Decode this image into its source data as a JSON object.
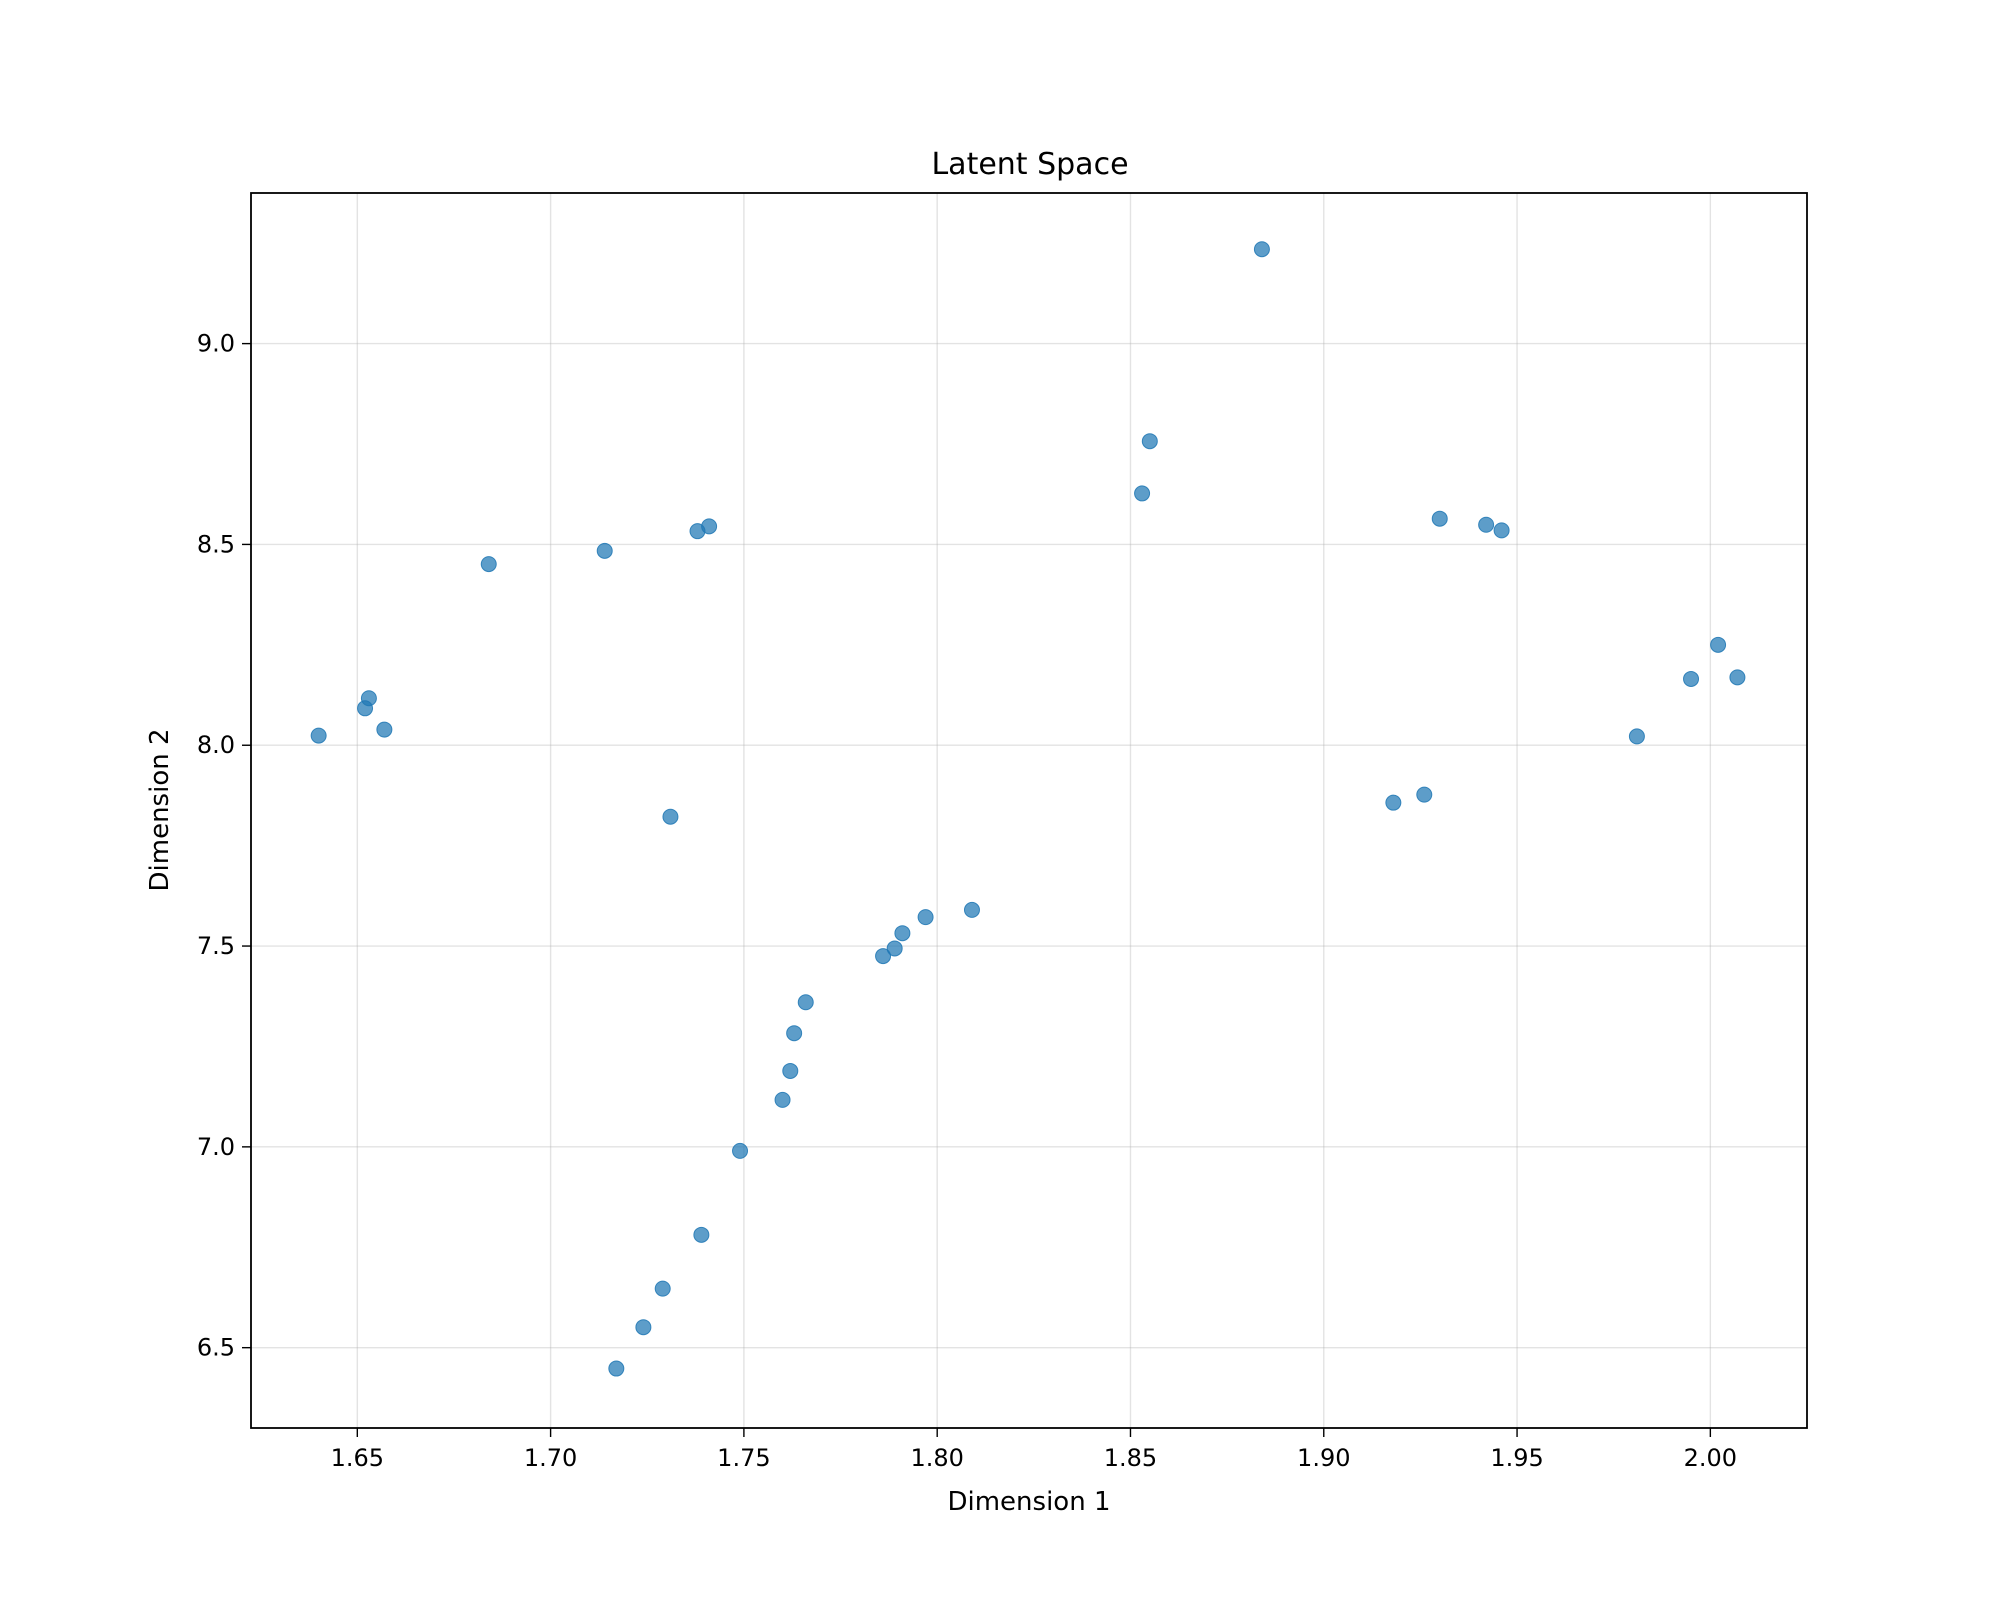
{
  "chart_data": {
    "type": "scatter",
    "title": "Latent Space",
    "xlabel": "Dimension 1",
    "ylabel": "Dimension 2",
    "xlim": [
      1.6225,
      2.025
    ],
    "ylim": [
      6.3,
      9.375
    ],
    "xticks": [
      1.65,
      1.7,
      1.75,
      1.8,
      1.85,
      1.9,
      1.95,
      2.0
    ],
    "xtick_labels": [
      "1.65",
      "1.70",
      "1.75",
      "1.80",
      "1.85",
      "1.90",
      "1.95",
      "2.00"
    ],
    "yticks": [
      6.5,
      7.0,
      7.5,
      8.0,
      8.5,
      9.0
    ],
    "ytick_labels": [
      "6.5",
      "7.0",
      "7.5",
      "8.0",
      "8.5",
      "9.0"
    ],
    "grid": true,
    "marker_color": "#1f77b4",
    "series": [
      {
        "points": [
          {
            "x": 1.884,
            "y": 9.235
          },
          {
            "x": 1.855,
            "y": 8.757
          },
          {
            "x": 1.853,
            "y": 8.627
          },
          {
            "x": 1.93,
            "y": 8.564
          },
          {
            "x": 1.942,
            "y": 8.549
          },
          {
            "x": 1.946,
            "y": 8.535
          },
          {
            "x": 1.741,
            "y": 8.545
          },
          {
            "x": 1.738,
            "y": 8.533
          },
          {
            "x": 1.714,
            "y": 8.484
          },
          {
            "x": 1.684,
            "y": 8.451
          },
          {
            "x": 2.002,
            "y": 8.25
          },
          {
            "x": 1.995,
            "y": 8.165
          },
          {
            "x": 2.007,
            "y": 8.169
          },
          {
            "x": 1.981,
            "y": 8.022
          },
          {
            "x": 1.653,
            "y": 8.117
          },
          {
            "x": 1.652,
            "y": 8.092
          },
          {
            "x": 1.657,
            "y": 8.039
          },
          {
            "x": 1.64,
            "y": 8.024
          },
          {
            "x": 1.918,
            "y": 7.857
          },
          {
            "x": 1.926,
            "y": 7.877
          },
          {
            "x": 1.731,
            "y": 7.822
          },
          {
            "x": 1.809,
            "y": 7.59
          },
          {
            "x": 1.797,
            "y": 7.572
          },
          {
            "x": 1.791,
            "y": 7.532
          },
          {
            "x": 1.789,
            "y": 7.494
          },
          {
            "x": 1.786,
            "y": 7.475
          },
          {
            "x": 1.766,
            "y": 7.36
          },
          {
            "x": 1.763,
            "y": 7.283
          },
          {
            "x": 1.762,
            "y": 7.189
          },
          {
            "x": 1.76,
            "y": 7.117
          },
          {
            "x": 1.749,
            "y": 6.99
          },
          {
            "x": 1.739,
            "y": 6.781
          },
          {
            "x": 1.729,
            "y": 6.647
          },
          {
            "x": 1.724,
            "y": 6.551
          },
          {
            "x": 1.717,
            "y": 6.448
          }
        ]
      }
    ]
  }
}
